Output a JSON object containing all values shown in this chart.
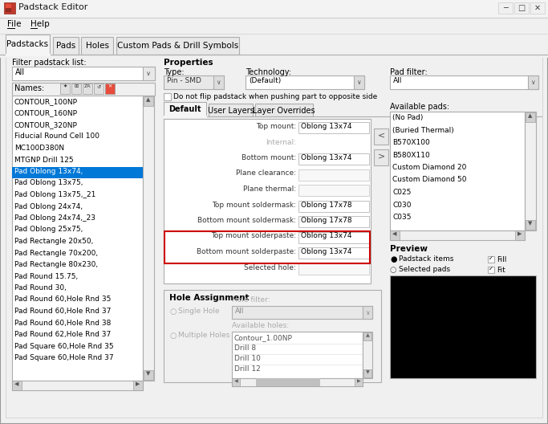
{
  "title": "Padstack Editor",
  "bg_color": "#f0f0f0",
  "white": "#ffffff",
  "blue_selected": "#0078d7",
  "red_border": "#cc0000",
  "black": "#000000",
  "tab_names": [
    "Padstacks",
    "Pads",
    "Holes",
    "Custom Pads & Drill Symbols"
  ],
  "names_list": [
    "CONTOUR_100NP",
    "CONTOUR_160NP",
    "CONTOUR_320NP",
    "Fiducial Round Cell 100",
    "MC100D380N",
    "MTGNP Drill 125",
    "Pad Oblong 13x74,",
    "Pad Oblong 13x75,",
    "Pad Oblong 13x75,_21",
    "Pad Oblong 24x74,",
    "Pad Oblong 24x74,_23",
    "Pad Oblong 25x75,",
    "Pad Rectangle 20x50,",
    "Pad Rectangle 70x200,",
    "Pad Rectangle 80x230,",
    "Pad Round 15.75,",
    "Pad Round 30,",
    "Pad Round 60,Hole Rnd 35",
    "Pad Round 60,Hole Rnd 37",
    "Pad Round 60,Hole Rnd 38",
    "Pad Round 62,Hole Rnd 37",
    "Pad Square 60,Hole Rnd 35",
    "Pad Square 60,Hole Rnd 37"
  ],
  "selected_index": 6,
  "pad_fields": [
    [
      "Top mount:",
      "Oblong 13x74"
    ],
    [
      "Internal:",
      ""
    ],
    [
      "Bottom mount:",
      "Oblong 13x74"
    ],
    [
      "Plane clearance:",
      ""
    ],
    [
      "Plane thermal:",
      ""
    ],
    [
      "Top mount soldermask:",
      "Oblong 17x78"
    ],
    [
      "Bottom mount soldermask:",
      "Oblong 17x78"
    ],
    [
      "Top mount solderpaste:",
      "Oblong 13x74"
    ],
    [
      "Bottom mount solderpaste:",
      "Oblong 13x74"
    ],
    [
      "Selected hole:",
      ""
    ]
  ],
  "available_pads": [
    "(No Pad)",
    "(Buried Thermal)",
    "B570X100",
    "B580X110",
    "Custom Diamond 20",
    "Custom Diamond 50",
    "C025",
    "C030",
    "C035"
  ],
  "hole_list": [
    "Contour_1.00NP",
    "Drill 8",
    "Drill 10",
    "Drill 12"
  ],
  "type_value": "Pin - SMD",
  "tech_value": "(Default)",
  "font_size": 6.5,
  "small_font": 5.5
}
